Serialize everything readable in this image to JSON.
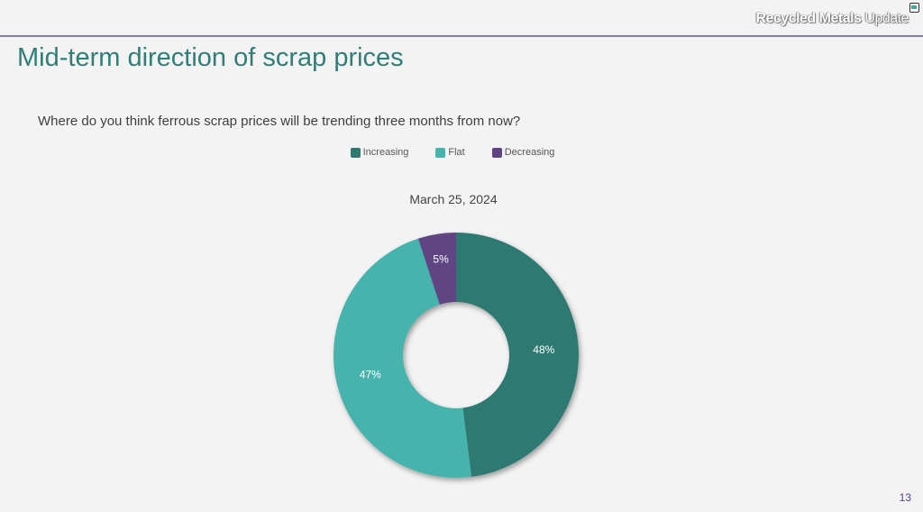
{
  "header": {
    "brand_bold": "Recycled Metals",
    "brand_light": " Update"
  },
  "slide": {
    "title": "Mid-term direction of scrap prices",
    "page_number": "13"
  },
  "chart_data": {
    "type": "pie",
    "title": "Where do you think ferrous scrap prices will be trending three months from now?",
    "subtitle": "March 25, 2024",
    "donut": true,
    "legend_position": "top",
    "categories": [
      "Increasing",
      "Flat",
      "Decreasing"
    ],
    "values": [
      48,
      47,
      5
    ],
    "labels": [
      "48%",
      "47%",
      "5%"
    ],
    "colors": [
      "#2f7a73",
      "#46b3ad",
      "#5e4482"
    ]
  }
}
